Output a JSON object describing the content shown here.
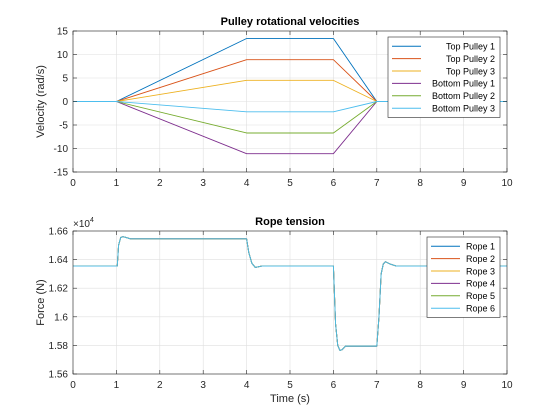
{
  "chart_data": [
    {
      "type": "line",
      "title": "Pulley rotational velocities",
      "xlabel": "",
      "ylabel": "Velocity (rad/s)",
      "xlim": [
        0,
        10
      ],
      "ylim": [
        -15,
        15
      ],
      "xticks": [
        0,
        1,
        2,
        3,
        4,
        5,
        6,
        7,
        8,
        9,
        10
      ],
      "xticklabels": [
        "0",
        "1",
        "2",
        "3",
        "4",
        "5",
        "6",
        "7",
        "8",
        "9",
        "10"
      ],
      "yticks": [
        -15,
        -10,
        -5,
        0,
        5,
        10,
        15
      ],
      "yticklabels": [
        "-15",
        "-10",
        "-5",
        "0",
        "5",
        "10",
        "15"
      ],
      "grid": true,
      "legend_position": "top-right",
      "series": [
        {
          "name": "Top Pulley 1",
          "color": "#0072bd",
          "x": [
            0,
            1,
            4,
            6,
            7,
            10
          ],
          "y": [
            0,
            0,
            13.4,
            13.4,
            0,
            0
          ]
        },
        {
          "name": "Top Pulley 2",
          "color": "#d95319",
          "x": [
            0,
            1,
            4,
            6,
            7,
            10
          ],
          "y": [
            0,
            0,
            8.9,
            8.9,
            0,
            0
          ]
        },
        {
          "name": "Top Pulley 3",
          "color": "#edb120",
          "x": [
            0,
            1,
            4,
            6,
            7,
            10
          ],
          "y": [
            0,
            0,
            4.5,
            4.5,
            0,
            0
          ]
        },
        {
          "name": "Bottom Pulley 1",
          "color": "#7e2f8e",
          "x": [
            0,
            1,
            4,
            6,
            7,
            10
          ],
          "y": [
            0,
            0,
            -11.1,
            -11.1,
            0,
            0
          ]
        },
        {
          "name": "Bottom Pulley 2",
          "color": "#77ac30",
          "x": [
            0,
            1,
            4,
            6,
            7,
            10
          ],
          "y": [
            0,
            0,
            -6.7,
            -6.7,
            0,
            0
          ]
        },
        {
          "name": "Bottom Pulley 3",
          "color": "#4dbeee",
          "x": [
            0,
            1,
            4,
            6,
            7,
            10
          ],
          "y": [
            0,
            0,
            -2.2,
            -2.2,
            0,
            0
          ]
        }
      ]
    },
    {
      "type": "line",
      "title": "Rope tension",
      "xlabel": "Time (s)",
      "ylabel": "Force (N)",
      "exponent_label": "×10",
      "exponent_power": "4",
      "xlim": [
        0,
        10
      ],
      "ylim": [
        1.56,
        1.66
      ],
      "xticks": [
        0,
        1,
        2,
        3,
        4,
        5,
        6,
        7,
        8,
        9,
        10
      ],
      "xticklabels": [
        "0",
        "1",
        "2",
        "3",
        "4",
        "5",
        "6",
        "7",
        "8",
        "9",
        "10"
      ],
      "yticks": [
        1.56,
        1.58,
        1.6,
        1.62,
        1.64,
        1.66
      ],
      "yticklabels": [
        "1.56",
        "1.58",
        "1.6",
        "1.62",
        "1.64",
        "1.66"
      ],
      "grid": true,
      "legend_position": "top-right",
      "series": [
        {
          "name": "Rope 1",
          "color": "#0072bd",
          "x": [
            0,
            1.02,
            1.05,
            1.1,
            1.15,
            1.22,
            1.32,
            1.45,
            4.0,
            4.05,
            4.12,
            4.2,
            4.35,
            4.5,
            6.0,
            6.05,
            6.1,
            6.15,
            6.2,
            6.28,
            6.35,
            7.0,
            7.05,
            7.1,
            7.15,
            7.2,
            7.3,
            7.45,
            10
          ],
          "y": [
            1.6355,
            1.6355,
            1.65,
            1.6555,
            1.656,
            1.6555,
            1.6545,
            1.6545,
            1.6545,
            1.645,
            1.6375,
            1.6345,
            1.6355,
            1.6355,
            1.6355,
            1.595,
            1.58,
            1.5765,
            1.577,
            1.5795,
            1.5795,
            1.5795,
            1.6,
            1.63,
            1.637,
            1.6385,
            1.637,
            1.6355,
            1.6355
          ]
        },
        {
          "name": "Rope 2",
          "color": "#d95319",
          "x": [
            0,
            1.02,
            1.05,
            1.1,
            1.15,
            1.22,
            1.32,
            1.45,
            4.0,
            4.05,
            4.12,
            4.2,
            4.35,
            4.5,
            6.0,
            6.05,
            6.1,
            6.15,
            6.2,
            6.28,
            6.35,
            7.0,
            7.05,
            7.1,
            7.15,
            7.2,
            7.3,
            7.45,
            10
          ],
          "y": [
            1.6355,
            1.6355,
            1.65,
            1.6555,
            1.656,
            1.6555,
            1.6545,
            1.6545,
            1.6545,
            1.645,
            1.6375,
            1.6345,
            1.6355,
            1.6355,
            1.6355,
            1.595,
            1.58,
            1.5765,
            1.577,
            1.5795,
            1.5795,
            1.5795,
            1.6,
            1.63,
            1.637,
            1.6385,
            1.637,
            1.6355,
            1.6355
          ]
        },
        {
          "name": "Rope 3",
          "color": "#edb120",
          "x": [
            0,
            1.02,
            1.05,
            1.1,
            1.15,
            1.22,
            1.32,
            1.45,
            4.0,
            4.05,
            4.12,
            4.2,
            4.35,
            4.5,
            6.0,
            6.05,
            6.1,
            6.15,
            6.2,
            6.28,
            6.35,
            7.0,
            7.05,
            7.1,
            7.15,
            7.2,
            7.3,
            7.45,
            10
          ],
          "y": [
            1.6355,
            1.6355,
            1.65,
            1.6555,
            1.656,
            1.6555,
            1.6545,
            1.6545,
            1.6545,
            1.645,
            1.6375,
            1.6345,
            1.6355,
            1.6355,
            1.6355,
            1.595,
            1.58,
            1.5765,
            1.577,
            1.5795,
            1.5795,
            1.5795,
            1.6,
            1.63,
            1.637,
            1.6385,
            1.637,
            1.6355,
            1.6355
          ]
        },
        {
          "name": "Rope 4",
          "color": "#7e2f8e",
          "x": [
            0,
            1.02,
            1.05,
            1.1,
            1.15,
            1.22,
            1.32,
            1.45,
            4.0,
            4.05,
            4.12,
            4.2,
            4.35,
            4.5,
            6.0,
            6.05,
            6.1,
            6.15,
            6.2,
            6.28,
            6.35,
            7.0,
            7.05,
            7.1,
            7.15,
            7.2,
            7.3,
            7.45,
            10
          ],
          "y": [
            1.6355,
            1.6355,
            1.65,
            1.6555,
            1.656,
            1.6555,
            1.6545,
            1.6545,
            1.6545,
            1.645,
            1.6375,
            1.6345,
            1.6355,
            1.6355,
            1.6355,
            1.595,
            1.58,
            1.5765,
            1.577,
            1.5795,
            1.5795,
            1.5795,
            1.6,
            1.63,
            1.637,
            1.6385,
            1.637,
            1.6355,
            1.6355
          ]
        },
        {
          "name": "Rope 5",
          "color": "#77ac30",
          "x": [
            0,
            1.02,
            1.05,
            1.1,
            1.15,
            1.22,
            1.32,
            1.45,
            4.0,
            4.05,
            4.12,
            4.2,
            4.35,
            4.5,
            6.0,
            6.05,
            6.1,
            6.15,
            6.2,
            6.28,
            6.35,
            7.0,
            7.05,
            7.1,
            7.15,
            7.2,
            7.3,
            7.45,
            10
          ],
          "y": [
            1.6355,
            1.6355,
            1.65,
            1.6555,
            1.656,
            1.6555,
            1.6545,
            1.6545,
            1.6545,
            1.645,
            1.6375,
            1.6345,
            1.6355,
            1.6355,
            1.6355,
            1.595,
            1.58,
            1.5765,
            1.577,
            1.5795,
            1.5795,
            1.5795,
            1.6,
            1.63,
            1.637,
            1.6385,
            1.637,
            1.6355,
            1.6355
          ]
        },
        {
          "name": "Rope 6",
          "color": "#4dbeee",
          "x": [
            0,
            1.02,
            1.05,
            1.1,
            1.15,
            1.22,
            1.32,
            1.45,
            4.0,
            4.05,
            4.12,
            4.2,
            4.35,
            4.5,
            6.0,
            6.05,
            6.1,
            6.15,
            6.2,
            6.28,
            6.35,
            7.0,
            7.05,
            7.1,
            7.15,
            7.2,
            7.3,
            7.45,
            10
          ],
          "y": [
            1.6355,
            1.6355,
            1.65,
            1.6555,
            1.656,
            1.6555,
            1.6545,
            1.6545,
            1.6545,
            1.645,
            1.6375,
            1.6345,
            1.6355,
            1.6355,
            1.6355,
            1.595,
            1.58,
            1.5765,
            1.577,
            1.5795,
            1.5795,
            1.5795,
            1.6,
            1.63,
            1.637,
            1.6385,
            1.637,
            1.6355,
            1.6355
          ]
        }
      ]
    }
  ]
}
